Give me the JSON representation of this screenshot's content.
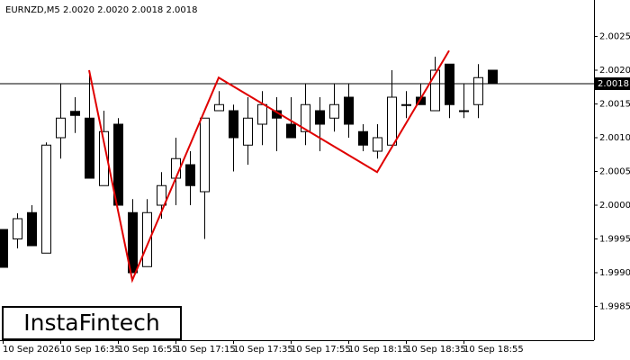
{
  "chart_data": {
    "type": "candlestick",
    "title": "EURNZD,M5  2.0020 2.0020 2.0018 2.0018",
    "watermark": "InstaFintech",
    "categories": [
      "10 Sep 2026",
      null,
      null,
      null,
      "10 Sep 16:35",
      null,
      null,
      null,
      "10 Sep 16:55",
      null,
      null,
      null,
      "10 Sep 17:15",
      null,
      null,
      null,
      "10 Sep 17:35",
      null,
      null,
      null,
      "10 Sep 17:55",
      null,
      null,
      null,
      "10 Sep 18:15",
      null,
      null,
      null,
      "10 Sep 18:35",
      null,
      null,
      null,
      "10 Sep 18:55",
      null,
      null
    ],
    "open": [
      1.99964,
      1.9995,
      1.99989,
      1.99929,
      2.001,
      2.00139,
      2.00129,
      2.00029,
      2.0012,
      1.99989,
      1.99909,
      2.0,
      2.0004,
      2.0006,
      2.0002,
      2.0014,
      2.0014,
      2.00089,
      2.0012,
      2.0014,
      2.0012,
      2.00109,
      2.0014,
      2.00129,
      2.0016,
      2.00109,
      2.0008,
      2.00089,
      2.00149,
      2.0016,
      2.0014,
      2.00209,
      2.0014,
      2.00149,
      2.002
    ],
    "high": [
      1.99964,
      1.99988,
      2.0,
      2.00093,
      2.0018,
      2.0016,
      2.002,
      2.0014,
      2.00129,
      2.00009,
      2.00009,
      2.00049,
      2.001,
      2.0008,
      2.00129,
      2.00169,
      2.00149,
      2.0016,
      2.00169,
      2.0016,
      2.0016,
      2.0018,
      2.0016,
      2.0018,
      2.0018,
      2.0012,
      2.0012,
      2.002,
      2.00169,
      2.0018,
      2.0022,
      2.00209,
      2.0018,
      2.00209,
      2.002
    ],
    "low": [
      1.99908,
      1.99936,
      1.9994,
      1.99929,
      2.00069,
      2.00107,
      2.0004,
      2.00029,
      2.0,
      1.999,
      1.99909,
      1.9998,
      2.0,
      2.0,
      1.9995,
      2.0014,
      2.0005,
      2.0006,
      2.00089,
      2.0008,
      2.001,
      2.00089,
      2.0008,
      2.00109,
      2.001,
      2.0008,
      2.00069,
      2.00089,
      2.00129,
      2.00149,
      2.0014,
      2.00129,
      2.00129,
      2.00129,
      2.0018
    ],
    "close": [
      1.99908,
      1.9998,
      1.9994,
      2.00089,
      2.00129,
      2.00133,
      2.0004,
      2.00109,
      2.0,
      1.999,
      1.99989,
      2.00029,
      2.00069,
      2.00029,
      2.00129,
      2.00149,
      2.001,
      2.00129,
      2.00149,
      2.00129,
      2.001,
      2.00149,
      2.0012,
      2.00149,
      2.0012,
      2.00089,
      2.001,
      2.0016,
      2.00149,
      2.00149,
      2.002,
      2.00149,
      2.0014,
      2.00189,
      2.0018
    ],
    "up_color": "#ffffff",
    "down_color": "#000000",
    "pattern": {
      "x": [
        6,
        9,
        15,
        26,
        31
      ],
      "values": [
        2.002,
        1.99889,
        2.00189,
        2.00049,
        2.00229
      ],
      "color": "#e00000"
    },
    "current_price": 2.0018,
    "ylim": [
      1.998,
      2.003
    ],
    "yticks": [
      1.9985,
      {
        "value": 1.999,
        "label": "1.9990"
      },
      1.9995,
      {
        "value": 2.0,
        "label": "2.0000"
      },
      2.0005,
      {
        "value": 2.001,
        "label": "2.0010"
      },
      2.0015,
      {
        "value": 2.002,
        "label": "2.0020"
      },
      2.0025
    ]
  }
}
